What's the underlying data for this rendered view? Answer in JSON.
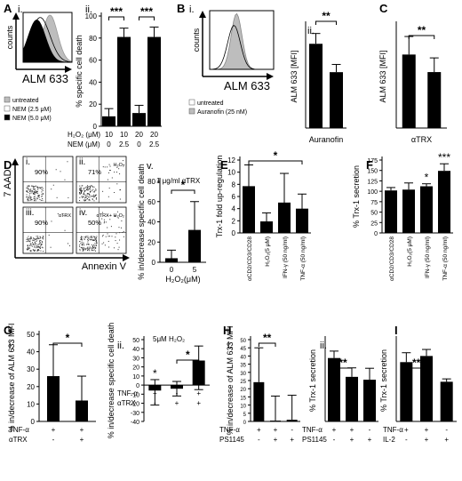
{
  "chart_data": [
    {
      "id": "A-ii",
      "type": "bar",
      "panel_label": "A",
      "sub_label": "ii.",
      "ylabel": "% specific cell death",
      "ylim": [
        0,
        100
      ],
      "yticks": [
        0,
        20,
        40,
        60,
        80,
        100
      ],
      "row_labels": [
        "H₂O₂ (μM)",
        "NEM (μM)"
      ],
      "rows": [
        [
          "10",
          "10",
          "20",
          "20"
        ],
        [
          "0",
          "2.5",
          "0",
          "2.5"
        ]
      ],
      "values": [
        9,
        81,
        12,
        81
      ],
      "err_hi": [
        7,
        8,
        7,
        9
      ],
      "err_lo": [
        0,
        0,
        0,
        0
      ],
      "sig": [
        {
          "from": 0,
          "to": 1,
          "label": "***"
        },
        {
          "from": 2,
          "to": 3,
          "label": "***"
        }
      ]
    },
    {
      "id": "B-ii",
      "type": "bar",
      "panel_label": "B",
      "sub_label": "ii.",
      "ylabel": "ALM 633 [MFI]",
      "values": [
        980,
        650
      ],
      "err_hi": [
        120,
        90
      ],
      "err_lo": [
        0,
        0
      ],
      "xlabel": "Auranofin",
      "sig": [
        {
          "from": 0,
          "to": 1,
          "label": "**"
        }
      ]
    },
    {
      "id": "C",
      "type": "bar",
      "panel_label": "C",
      "ylabel": "ALM 633 [MFI]",
      "values": [
        2850,
        2170
      ],
      "err_hi": [
        700,
        550
      ],
      "err_lo": [
        0,
        0
      ],
      "xlabel": "αTRX",
      "sig": [
        {
          "from": 0,
          "to": 1,
          "label": "**"
        }
      ]
    },
    {
      "id": "D-v",
      "type": "bar",
      "panel_label": "D",
      "sub_label": "v.",
      "annotation": "1 μg/ml αTRX",
      "ylabel": "% in/decrease  specific cell death",
      "categories": [
        "0",
        "5"
      ],
      "xlabel": "H₂O₂(μM)",
      "ylim": [
        0,
        80
      ],
      "yticks": [
        0,
        20,
        40,
        60,
        80
      ],
      "values": [
        4,
        32
      ],
      "err_hi": [
        8,
        28
      ],
      "err_lo": [
        4,
        0
      ],
      "sig": [
        {
          "from": 0,
          "to": 1,
          "label": "*"
        }
      ]
    },
    {
      "id": "E",
      "type": "bar",
      "panel_label": "E",
      "ylabel": "Trx-1 fold up-regulation",
      "categories": [
        "αCD2/CD3/CD28",
        "H₂O₂(5 μM)",
        "IFN-γ (50 ng/ml)",
        "TNF-α (50 ng/ml)"
      ],
      "ylim": [
        0,
        12
      ],
      "yticks": [
        0,
        2,
        4,
        6,
        8,
        10,
        12
      ],
      "values": [
        7.7,
        1.9,
        5.0,
        4.0
      ],
      "err_hi": [
        3.5,
        1.4,
        4.8,
        2.4
      ],
      "err_lo": [
        3.5,
        1.4,
        4.8,
        2.4
      ],
      "sig": [
        {
          "from": 0,
          "to": 3,
          "label": "*"
        }
      ]
    },
    {
      "id": "F",
      "type": "bar",
      "panel_label": "F",
      "ylabel": "% Trx-1 secretion",
      "categories": [
        "αCD2/CD3/CD28",
        "H₂O₂(5 μM)",
        "IFN-γ (50 ng/ml)",
        "TNF-α (50 ng/ml)"
      ],
      "ylim": [
        0,
        175
      ],
      "yticks": [
        0,
        25,
        50,
        75,
        100,
        125,
        150,
        175
      ],
      "values": [
        102,
        104,
        112,
        149
      ],
      "err_hi": [
        7,
        16,
        6,
        17
      ],
      "err_lo": [
        0,
        0,
        0,
        0
      ],
      "bar_labels": [
        "",
        "",
        "*",
        "***"
      ]
    },
    {
      "id": "G-i",
      "type": "bar",
      "panel_label": "G",
      "sub_label": "i.",
      "ylabel": "% in/decrease of ALM 633 MFI",
      "ylim": [
        0,
        50
      ],
      "yticks": [
        0,
        10,
        20,
        30,
        40,
        50
      ],
      "row_labels": [
        "TNF-α",
        "αTRX"
      ],
      "rows": [
        [
          "+",
          "+"
        ],
        [
          "-",
          "+"
        ]
      ],
      "values": [
        26,
        12
      ],
      "err_hi": [
        18,
        14
      ],
      "err_lo": [
        26,
        12
      ],
      "sig": [
        {
          "from": 0,
          "to": 1,
          "label": "*"
        }
      ]
    },
    {
      "id": "G-ii",
      "type": "bar",
      "sub_label": "ii.",
      "annotation": "5μM H₂O₂",
      "ylabel": "% in/decrease  specific cell death",
      "ylim": [
        -40,
        50
      ],
      "yticks": [
        -40,
        -30,
        -20,
        -10,
        0,
        10,
        20,
        30,
        40,
        50
      ],
      "row_labels": [
        "TNF-α",
        "αTRX"
      ],
      "rows": [
        [
          "+",
          "-",
          "+"
        ],
        [
          "-",
          "+",
          "+"
        ]
      ],
      "values": [
        -6,
        -4,
        27
      ],
      "err_hi": [
        12,
        8,
        16
      ],
      "err_lo": [
        16,
        8,
        32
      ],
      "bar_labels": [
        "*",
        "",
        ""
      ],
      "sig": [
        {
          "from": 1,
          "to": 2,
          "label": "*"
        }
      ]
    },
    {
      "id": "H-i",
      "type": "bar",
      "panel_label": "H",
      "sub_label": "i.",
      "ylabel": "% in/decrease of ALM 633 MFI",
      "ylim": [
        0,
        50
      ],
      "yticks": [
        0,
        5,
        10,
        15,
        20,
        25,
        30,
        35,
        40,
        45,
        50
      ],
      "row_labels": [
        "TNF-α",
        "PS1145"
      ],
      "rows": [
        [
          "+",
          "+",
          "-"
        ],
        [
          "-",
          "+",
          "+"
        ]
      ],
      "values": [
        24,
        0.5,
        1
      ],
      "err_hi": [
        21,
        15,
        15
      ],
      "err_lo": [
        0,
        0,
        0
      ],
      "sig": [
        {
          "from": 0,
          "to": 1,
          "label": "**"
        }
      ]
    },
    {
      "id": "H-ii",
      "type": "bar",
      "sub_label": "ii.",
      "ylabel": "% Trx-1 secretion",
      "row_labels": [
        "TNF-α",
        "PS1145"
      ],
      "rows": [
        [
          "+",
          "+",
          "-"
        ],
        [
          "-",
          "+",
          "+"
        ]
      ],
      "values": [
        155,
        109,
        102
      ],
      "err_hi": [
        17,
        22,
        28
      ],
      "err_lo": [
        0,
        0,
        0
      ],
      "sig": [
        {
          "from": 0,
          "to": 1,
          "label": "**"
        }
      ]
    },
    {
      "id": "I",
      "type": "bar",
      "panel_label": "I",
      "ylabel": "%  Trx-1 secretion",
      "row_labels": [
        "TNF-α",
        "IL-2"
      ],
      "rows": [
        [
          "+",
          "+",
          "-"
        ],
        [
          "-",
          "+",
          "+"
        ]
      ],
      "values": [
        145,
        160,
        97
      ],
      "err_hi": [
        23,
        16,
        7
      ],
      "err_lo": [
        0,
        0,
        0
      ],
      "sig": [
        {
          "from": 0,
          "to": 1,
          "label": "**"
        }
      ]
    }
  ],
  "histograms": {
    "A": {
      "panel_label": "A",
      "sub_label": "i.",
      "ylabel": "counts",
      "xlabel": "ALM 633",
      "legend": [
        "untreated",
        "NEM (2.5 μM)",
        "NEM (5.0 μM)"
      ],
      "legend_colors": [
        "#bdbdbd",
        "#ffffff",
        "#000000"
      ]
    },
    "B": {
      "sub_label": "i.",
      "ylabel": "counts",
      "xlabel": "ALM 633",
      "legend": [
        "untreated",
        "Auranofin (25 nM)"
      ],
      "legend_colors": [
        "#ffffff",
        "#bdbdbd"
      ]
    }
  },
  "flow": {
    "panel_label": "D",
    "ylabel": "7 AAD",
    "xlabel": "Annexin V",
    "plots": [
      {
        "label": "i.",
        "condition": "",
        "percent": "90%"
      },
      {
        "label": "ii.",
        "condition": "H₂O₂",
        "percent": "71%"
      },
      {
        "label": "iii.",
        "condition": "αTRX",
        "percent": "90%"
      },
      {
        "label": "iv.",
        "condition": "αTRX+ H₂O₂",
        "percent": "50%"
      }
    ]
  }
}
